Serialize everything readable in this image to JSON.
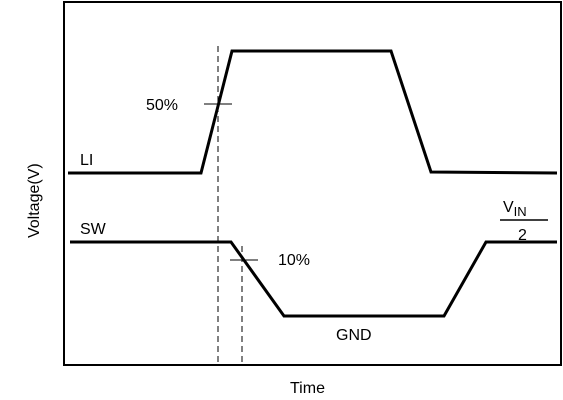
{
  "diagram": {
    "axis": {
      "xlabel": "Time",
      "ylabel": "Voltage(V)"
    },
    "signals": {
      "li_label": "LI",
      "sw_label": "SW",
      "gnd_label": "GND"
    },
    "thresholds": {
      "li_threshold": "50%",
      "sw_threshold": "10%"
    },
    "vin_fraction": {
      "numerator_main": "V",
      "numerator_sub": "IN",
      "denominator": "2"
    }
  }
}
